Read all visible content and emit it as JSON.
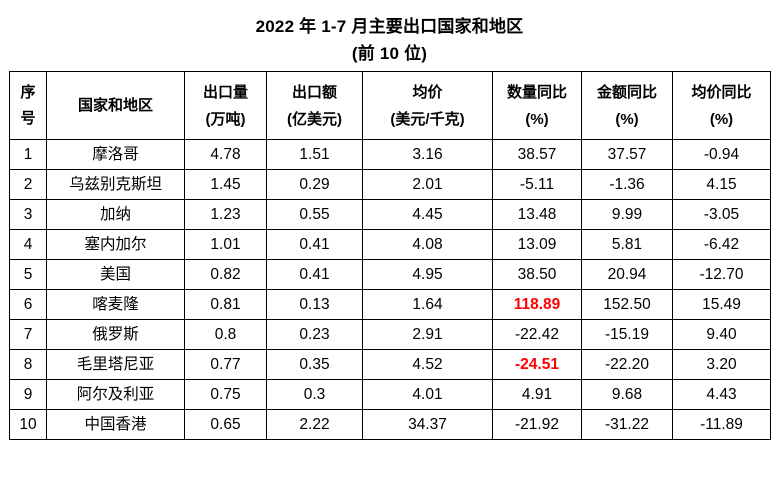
{
  "title": {
    "line1": "2022 年 1-7 月主要出口国家和地区",
    "line2": "(前 10 位)"
  },
  "table": {
    "columns": [
      {
        "label": "序号",
        "unit": ""
      },
      {
        "label": "国家和地区",
        "unit": ""
      },
      {
        "label": "出口量",
        "unit": "(万吨)"
      },
      {
        "label": "出口额",
        "unit": "(亿美元)"
      },
      {
        "label": "均价",
        "unit": "(美元/千克)"
      },
      {
        "label": "数量同比",
        "unit": "(%)"
      },
      {
        "label": "金额同比",
        "unit": "(%)"
      },
      {
        "label": "均价同比",
        "unit": "(%)"
      }
    ],
    "rows": [
      [
        "1",
        "摩洛哥",
        "4.78",
        "1.51",
        "3.16",
        "38.57",
        "37.57",
        "-0.94"
      ],
      [
        "2",
        "乌兹别克斯坦",
        "1.45",
        "0.29",
        "2.01",
        "-5.11",
        "-1.36",
        "4.15"
      ],
      [
        "3",
        "加纳",
        "1.23",
        "0.55",
        "4.45",
        "13.48",
        "9.99",
        "-3.05"
      ],
      [
        "4",
        "塞内加尔",
        "1.01",
        "0.41",
        "4.08",
        "13.09",
        "5.81",
        "-6.42"
      ],
      [
        "5",
        "美国",
        "0.82",
        "0.41",
        "4.95",
        "38.50",
        "20.94",
        "-12.70"
      ],
      [
        "6",
        "喀麦隆",
        "0.81",
        "0.13",
        "1.64",
        "118.89",
        "152.50",
        "15.49"
      ],
      [
        "7",
        "俄罗斯",
        "0.8",
        "0.23",
        "2.91",
        "-22.42",
        "-15.19",
        "9.40"
      ],
      [
        "8",
        "毛里塔尼亚",
        "0.77",
        "0.35",
        "4.52",
        "-24.51",
        "-22.20",
        "3.20"
      ],
      [
        "9",
        "阿尔及利亚",
        "0.75",
        "0.3",
        "4.01",
        "4.91",
        "9.68",
        "4.43"
      ],
      [
        "10",
        "中国香港",
        "0.65",
        "2.22",
        "34.37",
        "-21.92",
        "-31.22",
        "-11.89"
      ]
    ],
    "highlights": [
      {
        "row": 5,
        "col": 5
      },
      {
        "row": 7,
        "col": 5
      }
    ],
    "highlight_color": "#ff0000"
  }
}
